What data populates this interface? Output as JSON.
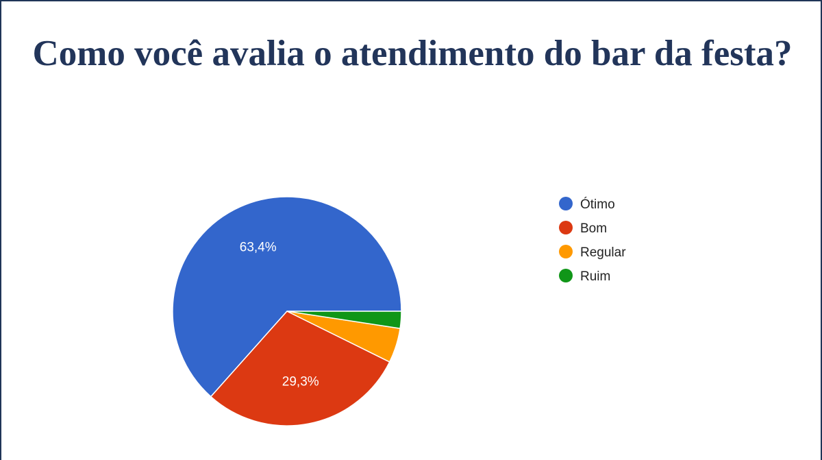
{
  "chart_data": {
    "type": "pie",
    "title": "Como você avalia o atendimento do bar da festa?",
    "categories": [
      "Ótimo",
      "Bom",
      "Regular",
      "Ruim"
    ],
    "values": [
      63.4,
      29.3,
      4.9,
      2.4
    ],
    "value_labels": [
      "63,4%",
      "29,3%",
      "",
      ""
    ],
    "colors": [
      "#3366cc",
      "#dc3912",
      "#ff9900",
      "#109618"
    ],
    "legend_position": "right"
  }
}
